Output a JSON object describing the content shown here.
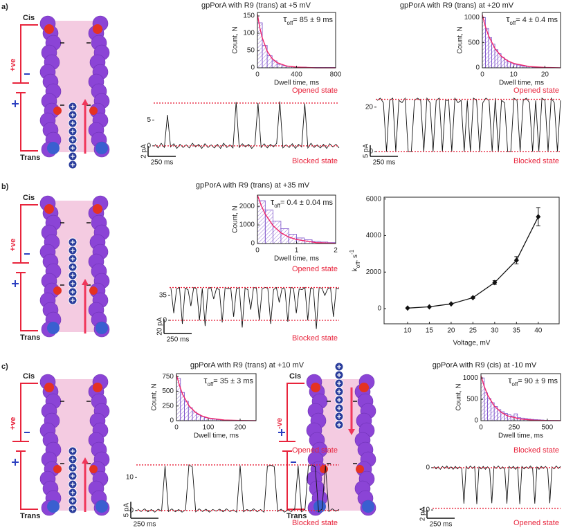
{
  "panel_labels": [
    "a)",
    "b)",
    "c)"
  ],
  "diagrams": [
    {
      "top": "Cis",
      "bottom": "Trans",
      "polarity": "+ve"
    },
    {
      "top": "Cis",
      "bottom": "Trans",
      "polarity": "+ve"
    },
    {
      "top": "Cis",
      "bottom": "Trans",
      "polarity": "+ve"
    },
    {
      "top": "Cis",
      "bottom": "Trans",
      "polarity": "-ve"
    }
  ],
  "chart_data": [
    {
      "type": "histogram",
      "title": "gpPorA with R9 (trans) at +5 mV",
      "annotation": {
        "symbol": "τ",
        "subscript": "off",
        "text": "= 85 ± 9 ms"
      },
      "xlabel": "Dwell time, ms",
      "ylabel": "Count, N",
      "bins": [
        0,
        50,
        100,
        150,
        200,
        250,
        300,
        350,
        400,
        450,
        500,
        550,
        600,
        650,
        700,
        750,
        800
      ],
      "values": [
        130,
        65,
        35,
        20,
        10,
        6,
        4,
        3,
        2,
        2,
        1,
        1,
        1,
        1,
        1,
        1
      ],
      "color": "#7b4fc9",
      "fit": {
        "x": [
          0,
          25,
          50,
          100,
          150,
          200,
          300,
          400,
          500,
          600,
          800
        ],
        "y": [
          155,
          115,
          86,
          48,
          27,
          15,
          5,
          2,
          1,
          0,
          0
        ],
        "color": "#f0246a"
      },
      "xlim": [
        0,
        800
      ],
      "ylim": [
        0,
        160
      ],
      "xticks": [
        0,
        400,
        800
      ],
      "yticks": [
        0,
        50,
        100,
        150
      ]
    },
    {
      "type": "trace",
      "color": "#111",
      "values": [
        0.3,
        -0.4,
        0.5,
        -0.3,
        6,
        -0.2,
        0.4,
        -0.5,
        0.3,
        -0.3,
        0.2,
        -0.4,
        0.5,
        -0.2,
        0.3,
        -0.5,
        0.4,
        -0.3,
        0.2,
        -0.4,
        0.3,
        -0.5,
        0.5,
        -0.3,
        0.2,
        -0.4,
        8.5,
        -0.3,
        0.4,
        -0.2,
        0.3,
        -0.5,
        0.2,
        8.3,
        -0.3,
        0.4,
        -0.4,
        0.3,
        -0.2,
        0.5,
        8.6,
        -0.4,
        0.2,
        -0.3,
        0.4,
        -0.5,
        0.3,
        -0.2,
        8.2,
        -0.4,
        0.5,
        -0.3,
        0.2,
        -0.4,
        0.3,
        -0.5,
        0.4,
        -0.2,
        0.3,
        -0.4
      ],
      "levels": [
        {
          "label": "Opened state",
          "value": 8.3
        },
        {
          "label": "Blocked state",
          "value": 0
        }
      ],
      "scalebar_y": {
        "value": 2,
        "label": "2 pA"
      },
      "scalebar_x": "250 ms",
      "ylim": [
        -1.5,
        9.5
      ],
      "yticks": [
        0,
        5
      ]
    },
    {
      "type": "histogram",
      "title": "gpPorA with R9 (trans) at +20 mV",
      "annotation": {
        "symbol": "τ",
        "subscript": "off",
        "text": "= 4 ± 0.4 ms"
      },
      "xlabel": "Dwell time, ms",
      "ylabel": "Count, N",
      "bins": [
        0,
        1,
        2,
        3,
        4,
        5,
        6,
        7,
        8,
        9,
        10,
        11,
        12,
        13,
        14,
        15,
        16,
        17,
        18,
        19,
        20,
        21,
        22,
        23,
        24,
        25
      ],
      "values": [
        1000,
        780,
        600,
        470,
        360,
        280,
        210,
        160,
        120,
        95,
        70,
        55,
        42,
        32,
        25,
        19,
        14,
        11,
        8,
        6,
        5,
        4,
        3,
        2,
        2
      ],
      "color": "#7b4fc9",
      "fit": {
        "x": [
          0,
          1,
          2,
          4,
          6,
          8,
          10,
          15,
          20,
          25
        ],
        "y": [
          1050,
          818,
          637,
          386,
          234,
          142,
          86,
          25,
          7,
          2
        ],
        "color": "#f0246a"
      },
      "xlim": [
        0,
        25
      ],
      "ylim": [
        0,
        1100
      ],
      "xticks": [
        0,
        10,
        20
      ],
      "yticks": [
        0,
        500,
        1000
      ]
    },
    {
      "type": "trace",
      "color": "#111",
      "values": [
        23,
        24,
        22,
        0,
        23,
        24,
        0,
        23,
        22,
        24,
        0,
        0,
        23,
        24,
        23,
        0,
        24,
        22,
        0,
        23,
        24,
        0,
        23,
        23,
        0,
        24,
        22,
        23,
        0,
        23,
        0,
        24,
        23,
        0,
        22,
        24,
        23,
        0,
        24,
        0,
        23,
        22,
        0,
        0,
        24,
        23,
        0,
        23,
        24,
        22,
        0,
        23,
        0,
        24,
        23,
        0,
        24,
        22,
        0,
        23
      ],
      "levels": [
        {
          "label": "Opened state",
          "value": 23.5
        },
        {
          "label": "Blocked state",
          "value": 0
        }
      ],
      "scalebar_y": {
        "value": 5,
        "label": "5 pA"
      },
      "scalebar_x": "250 ms",
      "ylim": [
        -0.9,
        24.6
      ],
      "yticks": [
        0,
        20
      ]
    },
    {
      "type": "histogram",
      "title": "gpPorA with R9 (trans) at +35 mV",
      "annotation": {
        "symbol": "τ",
        "subscript": "off",
        "text": "= 0.4 ± 0.04 ms"
      },
      "xlabel": "Dwell time, ms",
      "ylabel": "Count, N",
      "bins": [
        0,
        0.2,
        0.4,
        0.6,
        0.8,
        1,
        1.2,
        1.4,
        1.6,
        1.8,
        2
      ],
      "values": [
        2300,
        1800,
        1200,
        800,
        500,
        300,
        200,
        120,
        80,
        50
      ],
      "color": "#7b4fc9",
      "fit": {
        "x": [
          0,
          0.1,
          0.2,
          0.4,
          0.6,
          0.8,
          1,
          1.5,
          2
        ],
        "y": [
          2600,
          2030,
          1580,
          960,
          580,
          350,
          215,
          50,
          12
        ],
        "color": "#f0246a"
      },
      "xlim": [
        0,
        2
      ],
      "ylim": [
        0,
        2600
      ],
      "xticks": [
        0,
        1,
        2
      ],
      "yticks": [
        0,
        1000,
        2000
      ]
    },
    {
      "type": "trace",
      "color": "#111",
      "values": [
        45,
        10,
        44,
        46,
        -5,
        45,
        43,
        20,
        46,
        44,
        0,
        45,
        -8,
        44,
        46,
        30,
        45,
        43,
        -3,
        46,
        44,
        45,
        5,
        44,
        46,
        -10,
        45,
        43,
        15,
        46,
        45,
        0,
        44,
        46,
        45,
        -5,
        43,
        46,
        25,
        45,
        44,
        -2,
        46,
        45,
        10,
        44,
        43,
        46,
        0,
        45,
        44,
        -12,
        46,
        45,
        35,
        44,
        46,
        5,
        45,
        44
      ],
      "levels": [
        {
          "label": "Opened state",
          "value": 46
        },
        {
          "label": "Blocked state",
          "value": 0
        }
      ],
      "scalebar_y": {
        "value": 20,
        "label": "20 pA"
      },
      "scalebar_x": "250 ms",
      "ylim": [
        -14.6,
        63
      ],
      "yticks": [
        0,
        35
      ]
    },
    {
      "type": "line",
      "color": "#111",
      "xlabel": "Voltage, mV",
      "ylabel": {
        "symbol": "k",
        "subscript": "off",
        "text": ", s",
        "superscript": "-1"
      },
      "x": [
        10,
        15,
        20,
        25,
        30,
        35,
        40
      ],
      "values": [
        30,
        100,
        260,
        600,
        1430,
        2650,
        5030
      ],
      "errors": [
        20,
        20,
        30,
        40,
        100,
        200,
        500
      ],
      "xlim": [
        4.6,
        44.8
      ],
      "ylim": [
        -830,
        6100
      ],
      "xticks": [
        10,
        15,
        20,
        25,
        30,
        35,
        40
      ],
      "yticks": [
        0,
        2000,
        4000,
        6000
      ]
    },
    {
      "type": "histogram",
      "title": "gpPorA with R9 (trans) at +10 mV",
      "annotation": {
        "symbol": "τ",
        "subscript": "off",
        "text": "= 35 ± 3 ms"
      },
      "xlabel": "Dwell time, ms",
      "ylabel": "Count, N",
      "bins": [
        0,
        12.5,
        25,
        37.5,
        50,
        62.5,
        75,
        87.5,
        100,
        112.5,
        125,
        137.5,
        150,
        162.5,
        175,
        187.5,
        200,
        212.5,
        225,
        237.5,
        250
      ],
      "values": [
        720,
        480,
        330,
        220,
        150,
        100,
        70,
        50,
        35,
        25,
        18,
        14,
        10,
        8,
        6,
        5,
        4,
        3,
        2,
        2
      ],
      "color": "#7b4fc9",
      "fit": {
        "x": [
          0,
          10,
          20,
          40,
          60,
          80,
          100,
          150,
          200,
          250
        ],
        "y": [
          780,
          590,
          440,
          250,
          140,
          80,
          45,
          10,
          3,
          1
        ],
        "color": "#f0246a"
      },
      "xlim": [
        0,
        250
      ],
      "ylim": [
        0,
        800
      ],
      "xticks": [
        0,
        100,
        200
      ],
      "yticks": [
        0,
        250,
        500,
        750
      ]
    },
    {
      "type": "trace",
      "color": "#111",
      "values": [
        0.4,
        -0.3,
        0.5,
        -0.4,
        0.3,
        -0.5,
        0.4,
        -0.2,
        13.5,
        -0.3,
        0.5,
        -0.4,
        0.3,
        -0.5,
        0.2,
        13.8,
        13.2,
        -0.4,
        0.5,
        -0.3,
        0.4,
        -0.5,
        0.3,
        -0.2,
        0.4,
        -0.4,
        0.5,
        -0.3,
        0.2,
        -0.5,
        13.6,
        -0.4,
        0.3,
        -0.2,
        0.5,
        -0.4,
        0.3,
        -0.5,
        13.4,
        13.7,
        13.3,
        -0.3,
        0.4,
        -0.5,
        0.2,
        -0.3,
        0.5,
        13.6,
        -0.4,
        0.3,
        13.5,
        13.8,
        13.2,
        -0.4,
        0.4,
        13.6,
        -0.3,
        0.5,
        -0.2,
        0.3
      ],
      "levels": [
        {
          "label": "Opened state",
          "value": 13.8
        },
        {
          "label": "Blocked state",
          "value": 0
        }
      ],
      "scalebar_y": {
        "value": 5,
        "label": "5 pA"
      },
      "scalebar_x": "250 ms",
      "ylim": [
        -1.5,
        16.3
      ],
      "yticks": [
        0,
        10
      ]
    },
    {
      "type": "histogram",
      "title": "gpPorA with R9 (cis) at -10 mV",
      "annotation": {
        "symbol": "τ",
        "subscript": "off",
        "text": "= 90 ± 9 ms"
      },
      "xlabel": "Dwell time, ms",
      "ylabel": "Count, N",
      "bins": [
        0,
        25,
        50,
        75,
        100,
        125,
        150,
        175,
        200,
        225,
        250,
        275,
        300,
        325,
        350,
        375,
        400,
        425,
        450,
        475,
        500,
        525,
        550,
        575,
        600
      ],
      "values": [
        1000,
        650,
        520,
        420,
        330,
        260,
        210,
        170,
        140,
        110,
        160,
        70,
        60,
        50,
        40,
        30,
        25,
        20,
        15,
        10,
        8,
        6,
        5,
        4
      ],
      "color": "#7b4fc9",
      "fit": {
        "x": [
          0,
          25,
          50,
          100,
          150,
          200,
          300,
          400,
          500,
          600
        ],
        "y": [
          1050,
          800,
          600,
          345,
          200,
          112,
          37,
          12,
          4,
          1
        ],
        "color": "#f0246a"
      },
      "xlim": [
        0,
        600
      ],
      "ylim": [
        0,
        1100
      ],
      "xticks": [
        0,
        250,
        500
      ],
      "yticks": [
        0,
        500,
        1000
      ]
    },
    {
      "type": "trace",
      "color": "#111",
      "values": [
        0.3,
        -0.3,
        0.2,
        -0.4,
        0.3,
        -0.2,
        0.4,
        -0.3,
        0.2,
        -0.4,
        0.3,
        -0.3,
        0.2,
        -0.2,
        -8.5,
        0.3,
        -0.3,
        0.4,
        -0.2,
        0.3,
        -8.6,
        0.2,
        -0.3,
        0.3,
        -0.4,
        0.2,
        -0.3,
        -8.4,
        0.3,
        -0.2,
        0.4,
        -0.3,
        0.2,
        -0.4,
        -8.5,
        0.3,
        -0.2,
        0.3,
        -0.4,
        0.2,
        -8.6,
        0.3,
        -0.3,
        0.2,
        -0.2,
        0.4,
        -0.3,
        -8.5,
        0.2,
        -0.4,
        0.3,
        -0.2,
        0.3,
        -0.3,
        -8.4,
        0.2,
        -0.3,
        0.4,
        -0.2,
        0.3
      ],
      "levels": [
        {
          "label": "Blocked state",
          "value": 0
        },
        {
          "label": "Opened state",
          "value": -9.6
        }
      ],
      "scalebar_y": {
        "value": 2,
        "label": "2 pA"
      },
      "scalebar_x": "250 ms",
      "ylim": [
        -11.3,
        2.6
      ],
      "yticks": [
        0,
        -10
      ]
    }
  ]
}
